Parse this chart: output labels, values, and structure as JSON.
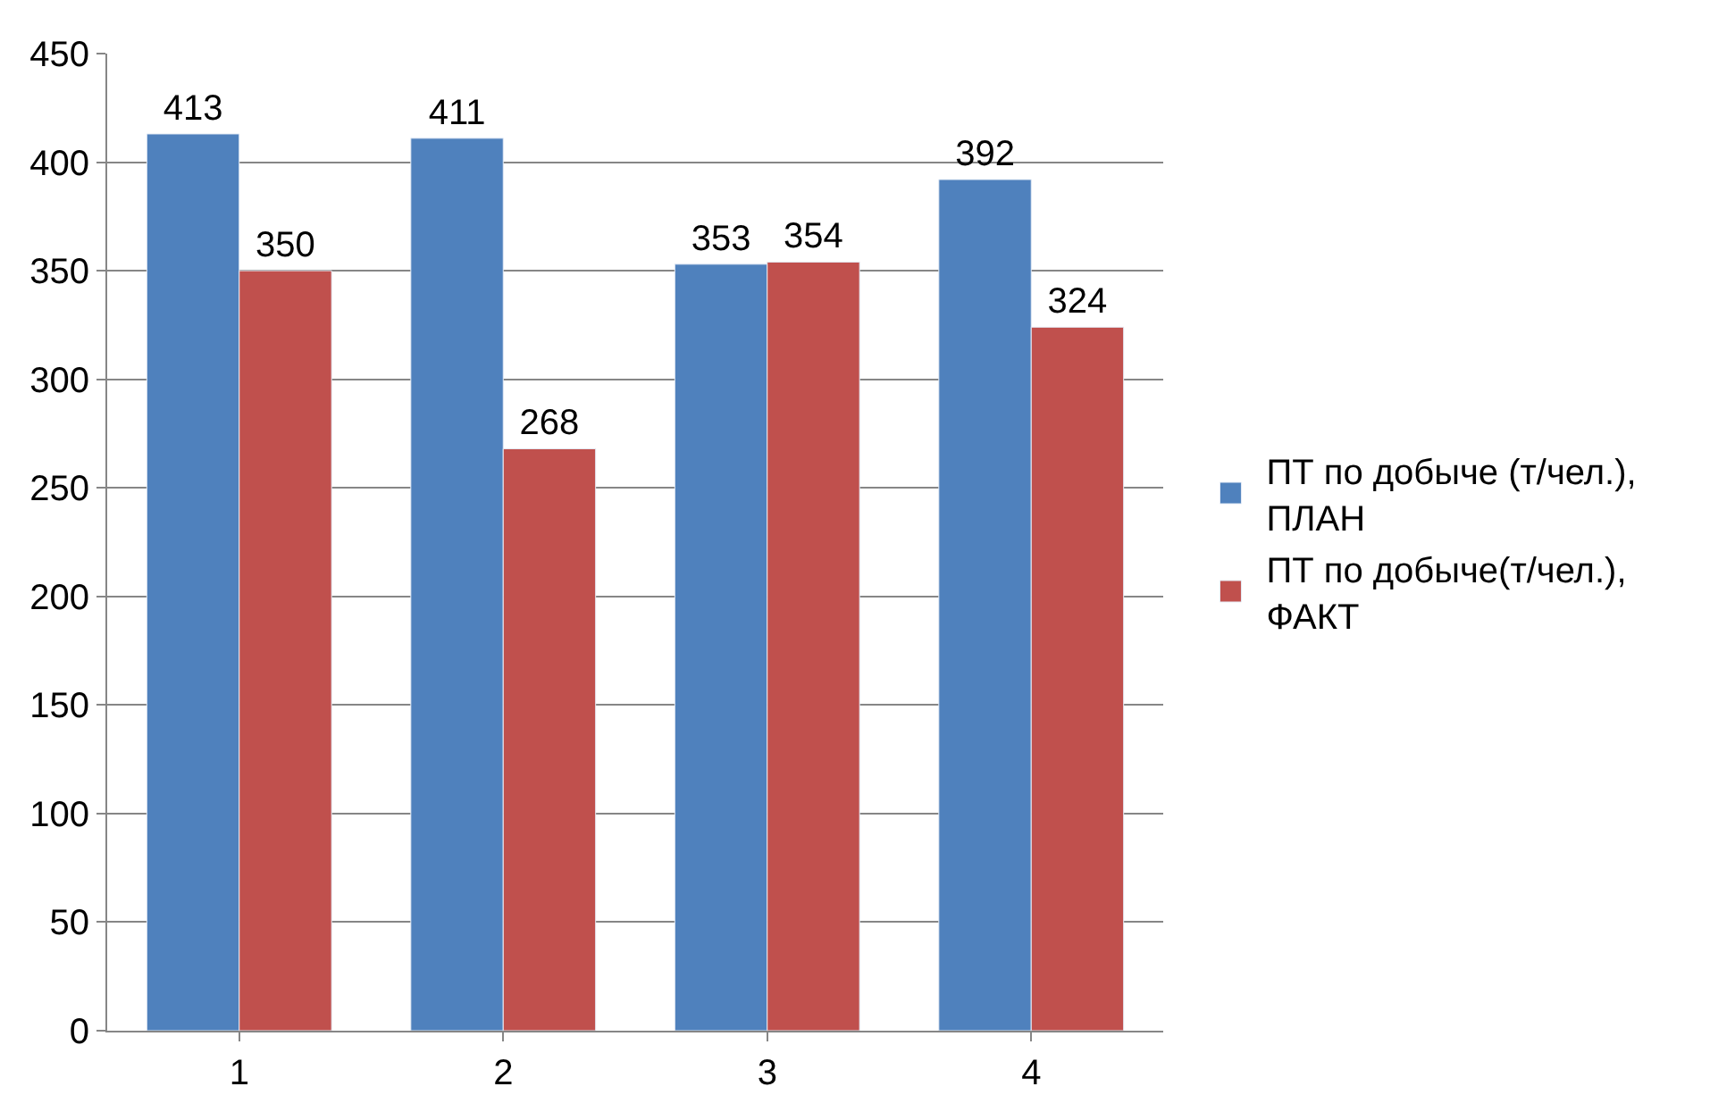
{
  "chart_data": {
    "type": "bar",
    "categories": [
      "1",
      "2",
      "3",
      "4"
    ],
    "series": [
      {
        "name": "ПТ по добыче (т/чел.), ПЛАН",
        "color": "#4f81bd",
        "values": [
          413,
          411,
          353,
          392
        ]
      },
      {
        "name": "ПТ по добыче(т/чел.), ФАКТ",
        "color": "#c0504d",
        "values": [
          350,
          268,
          354,
          324
        ]
      }
    ],
    "ylim": [
      0,
      450
    ],
    "yticks": [
      0,
      50,
      100,
      150,
      200,
      250,
      300,
      350,
      400,
      450
    ],
    "grid": "y",
    "legend": "right",
    "data_labels": true
  }
}
